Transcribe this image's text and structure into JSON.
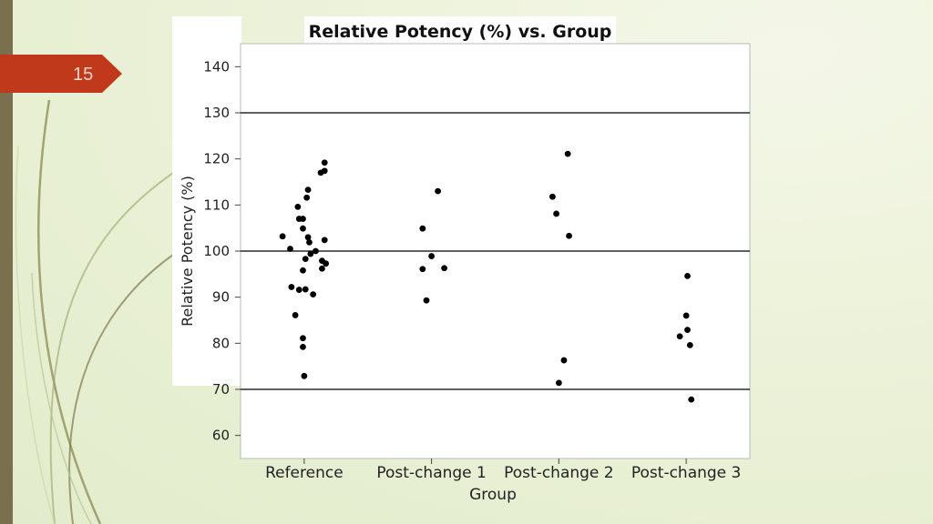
{
  "slide": {
    "page_number": "15",
    "accent_color": "#c0391a",
    "bar_color": "#7a6f4e"
  },
  "chart_data": {
    "type": "scatter",
    "title": "Relative Potency (%) vs. Group",
    "xlabel": "Group",
    "ylabel": "Relative Potency (%)",
    "categories": [
      "Reference",
      "Post-change 1",
      "Post-change 2",
      "Post-change 3"
    ],
    "ylim": [
      55,
      145
    ],
    "yticks": [
      60,
      70,
      80,
      90,
      100,
      110,
      120,
      130,
      140
    ],
    "reference_lines": [
      130,
      100,
      70
    ],
    "grid": false,
    "series": [
      {
        "category": "Reference",
        "points": [
          {
            "jitter": 0.16,
            "y": 119.2
          },
          {
            "jitter": 0.16,
            "y": 117.4
          },
          {
            "jitter": 0.13,
            "y": 117.0
          },
          {
            "jitter": 0.03,
            "y": 113.3
          },
          {
            "jitter": 0.02,
            "y": 111.6
          },
          {
            "jitter": -0.05,
            "y": 109.6
          },
          {
            "jitter": -0.04,
            "y": 107.0
          },
          {
            "jitter": -0.01,
            "y": 107.0
          },
          {
            "jitter": -0.01,
            "y": 104.9
          },
          {
            "jitter": -0.17,
            "y": 103.2
          },
          {
            "jitter": 0.03,
            "y": 103.0
          },
          {
            "jitter": 0.04,
            "y": 101.9
          },
          {
            "jitter": 0.16,
            "y": 102.4
          },
          {
            "jitter": -0.11,
            "y": 100.5
          },
          {
            "jitter": 0.09,
            "y": 100.0
          },
          {
            "jitter": 0.05,
            "y": 99.4
          },
          {
            "jitter": 0.01,
            "y": 98.3
          },
          {
            "jitter": 0.14,
            "y": 97.9
          },
          {
            "jitter": 0.17,
            "y": 97.3
          },
          {
            "jitter": 0.14,
            "y": 96.2
          },
          {
            "jitter": -0.01,
            "y": 95.8
          },
          {
            "jitter": -0.1,
            "y": 92.2
          },
          {
            "jitter": -0.04,
            "y": 91.6
          },
          {
            "jitter": 0.01,
            "y": 91.7
          },
          {
            "jitter": 0.07,
            "y": 90.6
          },
          {
            "jitter": -0.07,
            "y": 86.1
          },
          {
            "jitter": -0.01,
            "y": 81.1
          },
          {
            "jitter": -0.01,
            "y": 79.2
          },
          {
            "jitter": 0.0,
            "y": 72.9
          }
        ]
      },
      {
        "category": "Post-change 1",
        "points": [
          {
            "jitter": 0.05,
            "y": 113.0
          },
          {
            "jitter": -0.07,
            "y": 104.9
          },
          {
            "jitter": 0.0,
            "y": 98.9
          },
          {
            "jitter": -0.07,
            "y": 96.1
          },
          {
            "jitter": 0.1,
            "y": 96.3
          },
          {
            "jitter": -0.04,
            "y": 89.3
          }
        ]
      },
      {
        "category": "Post-change 2",
        "points": [
          {
            "jitter": 0.07,
            "y": 121.1
          },
          {
            "jitter": -0.05,
            "y": 111.8
          },
          {
            "jitter": -0.02,
            "y": 108.1
          },
          {
            "jitter": 0.08,
            "y": 103.3
          },
          {
            "jitter": 0.04,
            "y": 76.3
          },
          {
            "jitter": 0.0,
            "y": 71.4
          }
        ]
      },
      {
        "category": "Post-change 3",
        "points": [
          {
            "jitter": 0.01,
            "y": 94.6
          },
          {
            "jitter": 0.0,
            "y": 86.0
          },
          {
            "jitter": 0.01,
            "y": 82.9
          },
          {
            "jitter": -0.05,
            "y": 81.5
          },
          {
            "jitter": 0.03,
            "y": 79.6
          },
          {
            "jitter": 0.04,
            "y": 67.8
          }
        ]
      }
    ]
  }
}
